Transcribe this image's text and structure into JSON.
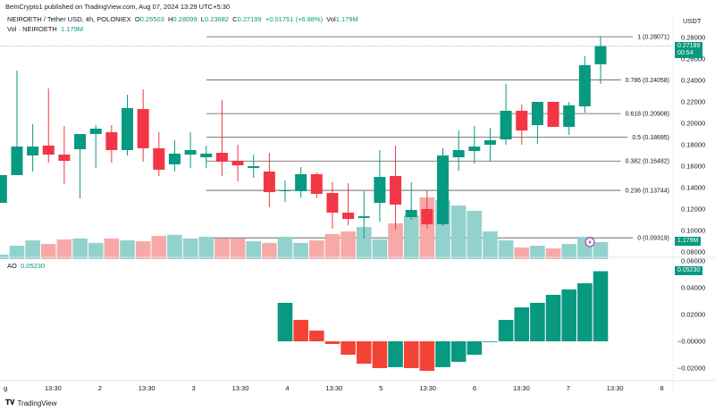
{
  "header": {
    "published": "BeInCrypto1 published on TradingView.com, Aug 07, 2024 13:29 UTC+5:30",
    "symbol": "NEIROETH / Tether USD, 4h, POLONIEX",
    "o_label": "O",
    "o": "0.25503",
    "h_label": "H",
    "h": "0.28099",
    "l_label": "L",
    "l": "0.23682",
    "c_label": "C",
    "c": "0.27199",
    "change": "+0.01751 (+6.88%)",
    "vol_label": "Vol",
    "vol": "1.179M"
  },
  "volume_legend": {
    "label": "Vol · NEIROETH",
    "value": "1.179M"
  },
  "ao_legend": {
    "label": "AO",
    "value": "0.05230"
  },
  "currency": "USDT",
  "last_price_badge": {
    "price": "0.27199",
    "countdown": "00:54"
  },
  "volume_badge": "1.179M",
  "ao_badge": "0.05230",
  "footer": {
    "brand": "TradingView"
  },
  "colors": {
    "up": "#089981",
    "down": "#f23645",
    "vol_up": "#92d2cc",
    "vol_down": "#f7a9a7",
    "ao_down": "#f44336",
    "fib_line": "#555555"
  },
  "price_axis": [
    "0.28000",
    "0.26000",
    "0.24000",
    "0.22000",
    "0.20000",
    "0.18000",
    "0.16000",
    "0.14000",
    "0.12000",
    "0.10000",
    "0.08000"
  ],
  "ao_axis": [
    "0.06000",
    "0.04000",
    "0.02000",
    "−0.00000",
    "−0.02000"
  ],
  "time_axis": [
    "g",
    "13:30",
    "2",
    "13:30",
    "3",
    "13:30",
    "4",
    "13:30",
    "5",
    "13:30",
    "6",
    "13:30",
    "7",
    "13:30",
    "8"
  ],
  "fib_levels": [
    {
      "label": "1 (0.28071)",
      "price": 0.28071
    },
    {
      "label": "0.786 (0.24058)",
      "price": 0.24058
    },
    {
      "label": "0.618 (0.20908)",
      "price": 0.20908
    },
    {
      "label": "0.5 (0.18695)",
      "price": 0.18695
    },
    {
      "label": "0.382 (0.16482)",
      "price": 0.16482
    },
    {
      "label": "0.236 (0.13744)",
      "price": 0.13744
    },
    {
      "label": "0 (0.09319)",
      "price": 0.09319
    }
  ],
  "chart_data": {
    "type": "candlestick",
    "price_range": [
      0.07,
      0.29
    ],
    "ohlc": [
      [
        0.1258,
        0.1517,
        0.1258,
        0.1517
      ],
      [
        0.1517,
        0.2492,
        0.1517,
        0.1783
      ],
      [
        0.17,
        0.1992,
        0.155,
        0.1783
      ],
      [
        0.1792,
        0.2325,
        0.1633,
        0.1708
      ],
      [
        0.1708,
        0.1975,
        0.1433,
        0.165
      ],
      [
        0.1758,
        0.19,
        0.13,
        0.19
      ],
      [
        0.19,
        0.1983,
        0.1583,
        0.195
      ],
      [
        0.1917,
        0.1983,
        0.1633,
        0.175
      ],
      [
        0.175,
        0.2267,
        0.17,
        0.2142
      ],
      [
        0.2133,
        0.2317,
        0.1642,
        0.1767
      ],
      [
        0.1767,
        0.1917,
        0.1508,
        0.1567
      ],
      [
        0.1617,
        0.1842,
        0.155,
        0.1717
      ],
      [
        0.1708,
        0.1917,
        0.1583,
        0.175
      ],
      [
        0.1683,
        0.1792,
        0.1583,
        0.1717
      ],
      [
        0.1725,
        0.2217,
        0.1508,
        0.1642
      ],
      [
        0.165,
        0.18,
        0.1458,
        0.1608
      ],
      [
        0.1583,
        0.1708,
        0.1492,
        0.16
      ],
      [
        0.155,
        0.1725,
        0.1217,
        0.1358
      ],
      [
        0.1367,
        0.1467,
        0.1267,
        0.1375
      ],
      [
        0.1367,
        0.1592,
        0.1308,
        0.1525
      ],
      [
        0.1525,
        0.1542,
        0.13,
        0.1342
      ],
      [
        0.135,
        0.145,
        0.1017,
        0.1167
      ],
      [
        0.1167,
        0.1442,
        0.105,
        0.1108
      ],
      [
        0.1117,
        0.1367,
        0.0925,
        0.1133
      ],
      [
        0.1258,
        0.175,
        0.1083,
        0.15
      ],
      [
        0.1508,
        0.1792,
        0.1008,
        0.1242
      ],
      [
        0.1125,
        0.145,
        0.11,
        0.1192
      ],
      [
        0.12,
        0.1375,
        0.1017,
        0.1058
      ],
      [
        0.1058,
        0.1767,
        0.1042,
        0.17
      ],
      [
        0.1683,
        0.1933,
        0.1558,
        0.175
      ],
      [
        0.1742,
        0.1975,
        0.1625,
        0.1783
      ],
      [
        0.18,
        0.1958,
        0.165,
        0.1842
      ],
      [
        0.185,
        0.2367,
        0.18,
        0.2117
      ],
      [
        0.2117,
        0.2175,
        0.18,
        0.1933
      ],
      [
        0.1983,
        0.22,
        0.1808,
        0.22
      ],
      [
        0.22,
        0.22,
        0.1967,
        0.1967
      ],
      [
        0.1967,
        0.22,
        0.1892,
        0.2167
      ],
      [
        0.2158,
        0.2625,
        0.21,
        0.2542
      ],
      [
        0.25503,
        0.28099,
        0.23682,
        0.27199
      ]
    ],
    "volume_millions": [
      0.31,
      0.93,
      1.3,
      1.05,
      1.37,
      1.43,
      1.12,
      1.43,
      1.3,
      1.24,
      1.61,
      1.68,
      1.43,
      1.55,
      1.43,
      1.43,
      1.24,
      1.12,
      1.55,
      1.12,
      1.3,
      1.74,
      1.92,
      2.23,
      1.37,
      2.48,
      3.04,
      4.28,
      4.09,
      3.72,
      3.35,
      1.92,
      1.3,
      0.81,
      0.93,
      0.74,
      1.05,
      1.55,
      1.179
    ],
    "ao": {
      "start_index": 18,
      "values": [
        0.0287,
        0.016,
        0.008,
        -0.002,
        -0.01,
        -0.0167,
        -0.02,
        -0.0193,
        -0.02,
        -0.022,
        -0.0193,
        -0.0153,
        -0.01,
        -0.0005,
        0.016,
        0.0253,
        0.0287,
        0.0347,
        0.0387,
        0.0433,
        0.0523
      ],
      "rising": [
        true,
        false,
        false,
        false,
        false,
        false,
        false,
        true,
        false,
        false,
        true,
        true,
        true,
        true,
        true,
        true,
        true,
        true,
        true,
        true,
        true
      ],
      "range": [
        -0.03,
        0.065
      ]
    }
  }
}
